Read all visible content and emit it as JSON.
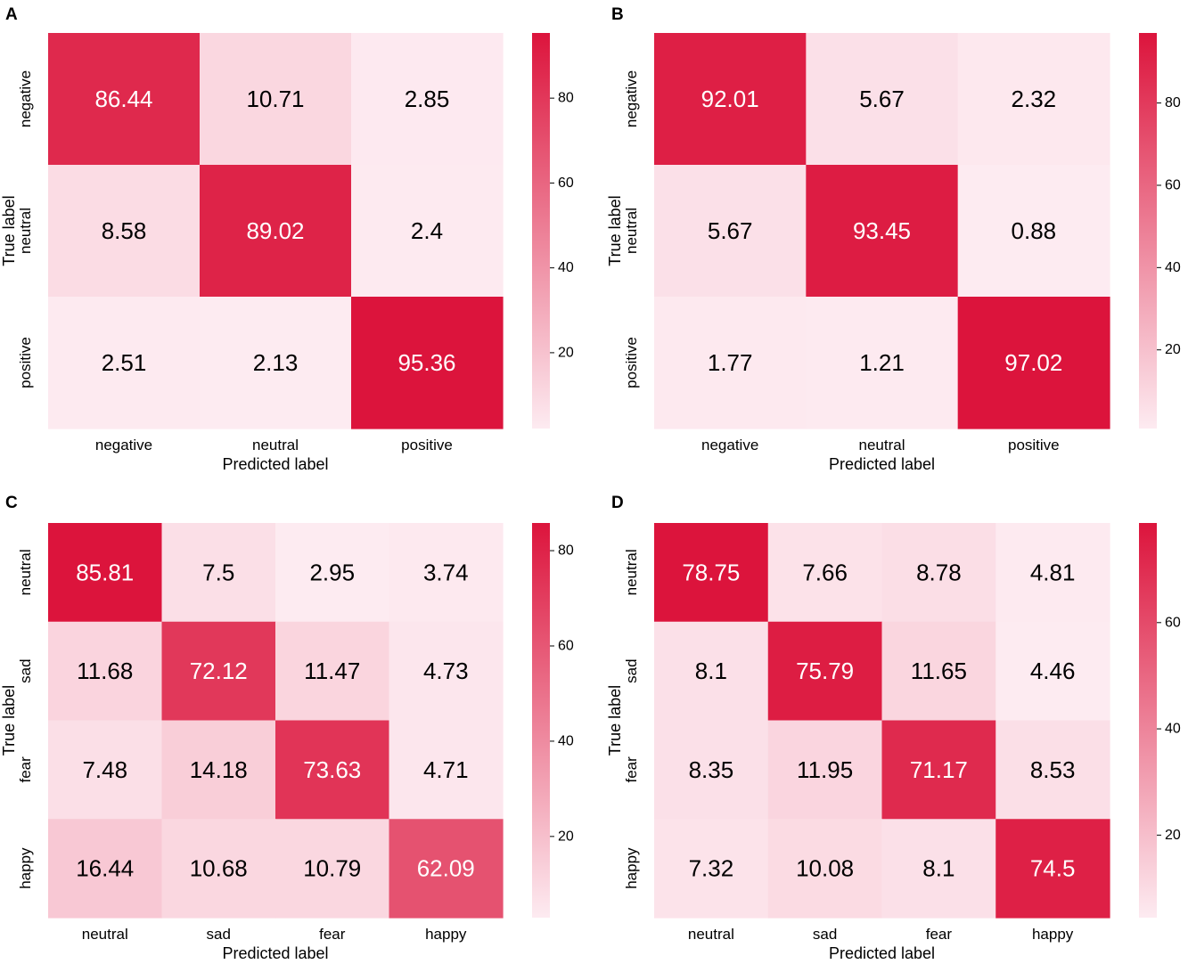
{
  "chart_data": [
    {
      "type": "heatmap",
      "panel_label": "A",
      "xlabel": "Predicted label",
      "ylabel": "True label",
      "x_categories": [
        "negative",
        "neutral",
        "positive"
      ],
      "y_categories": [
        "negative",
        "neutral",
        "positive"
      ],
      "values": [
        [
          86.44,
          10.71,
          2.85
        ],
        [
          8.58,
          89.02,
          2.4
        ],
        [
          2.51,
          2.13,
          95.36
        ]
      ],
      "value_labels": [
        [
          "86.44",
          "10.71",
          "2.85"
        ],
        [
          "8.58",
          "89.02",
          "2.4"
        ],
        [
          "2.51",
          "2.13",
          "95.36"
        ]
      ],
      "colorbar": {
        "range": [
          2.13,
          95.36
        ],
        "ticks": [
          20,
          40,
          60,
          80
        ],
        "tick_labels": [
          "20",
          "40",
          "60",
          "80"
        ]
      }
    },
    {
      "type": "heatmap",
      "panel_label": "B",
      "xlabel": "Predicted label",
      "ylabel": "True label",
      "x_categories": [
        "negative",
        "neutral",
        "positive"
      ],
      "y_categories": [
        "negative",
        "neutral",
        "positive"
      ],
      "values": [
        [
          92.01,
          5.67,
          2.32
        ],
        [
          5.67,
          93.45,
          0.88
        ],
        [
          1.77,
          1.21,
          97.02
        ]
      ],
      "value_labels": [
        [
          "92.01",
          "5.67",
          "2.32"
        ],
        [
          "5.67",
          "93.45",
          "0.88"
        ],
        [
          "1.77",
          "1.21",
          "97.02"
        ]
      ],
      "colorbar": {
        "range": [
          0.88,
          97.02
        ],
        "ticks": [
          20,
          40,
          60,
          80
        ],
        "tick_labels": [
          "20",
          "40",
          "60",
          "80"
        ]
      }
    },
    {
      "type": "heatmap",
      "panel_label": "C",
      "xlabel": "Predicted label",
      "ylabel": "True label",
      "x_categories": [
        "neutral",
        "sad",
        "fear",
        "happy"
      ],
      "y_categories": [
        "neutral",
        "sad",
        "fear",
        "happy"
      ],
      "values": [
        [
          85.81,
          7.5,
          2.95,
          3.74
        ],
        [
          11.68,
          72.12,
          11.47,
          4.73
        ],
        [
          7.48,
          14.18,
          73.63,
          4.71
        ],
        [
          16.44,
          10.68,
          10.79,
          62.09
        ]
      ],
      "value_labels": [
        [
          "85.81",
          "7.5",
          "2.95",
          "3.74"
        ],
        [
          "11.68",
          "72.12",
          "11.47",
          "4.73"
        ],
        [
          "7.48",
          "14.18",
          "73.63",
          "4.71"
        ],
        [
          "16.44",
          "10.68",
          "10.79",
          "62.09"
        ]
      ],
      "colorbar": {
        "range": [
          2.95,
          85.81
        ],
        "ticks": [
          20,
          40,
          60,
          80
        ],
        "tick_labels": [
          "20",
          "40",
          "60",
          "80"
        ]
      }
    },
    {
      "type": "heatmap",
      "panel_label": "D",
      "xlabel": "Predicted label",
      "ylabel": "True label",
      "x_categories": [
        "neutral",
        "sad",
        "fear",
        "happy"
      ],
      "y_categories": [
        "neutral",
        "sad",
        "fear",
        "happy"
      ],
      "values": [
        [
          78.75,
          7.66,
          8.78,
          4.81
        ],
        [
          8.1,
          75.79,
          11.65,
          4.46
        ],
        [
          8.35,
          11.95,
          71.17,
          8.53
        ],
        [
          7.32,
          10.08,
          8.1,
          74.5
        ]
      ],
      "value_labels": [
        [
          "78.75",
          "7.66",
          "8.78",
          "4.81"
        ],
        [
          "8.1",
          "75.79",
          "11.65",
          "4.46"
        ],
        [
          "8.35",
          "11.95",
          "71.17",
          "8.53"
        ],
        [
          "7.32",
          "10.08",
          "8.1",
          "74.5"
        ]
      ],
      "colorbar": {
        "range": [
          4.46,
          78.75
        ],
        "ticks": [
          20,
          40,
          60
        ],
        "tick_labels": [
          "20",
          "40",
          "60"
        ]
      }
    }
  ],
  "colors": {
    "low": "#fdebf1",
    "high": "#dc143c",
    "text_dark": "#000000",
    "text_light": "#ffffff",
    "label_threshold": 55
  }
}
